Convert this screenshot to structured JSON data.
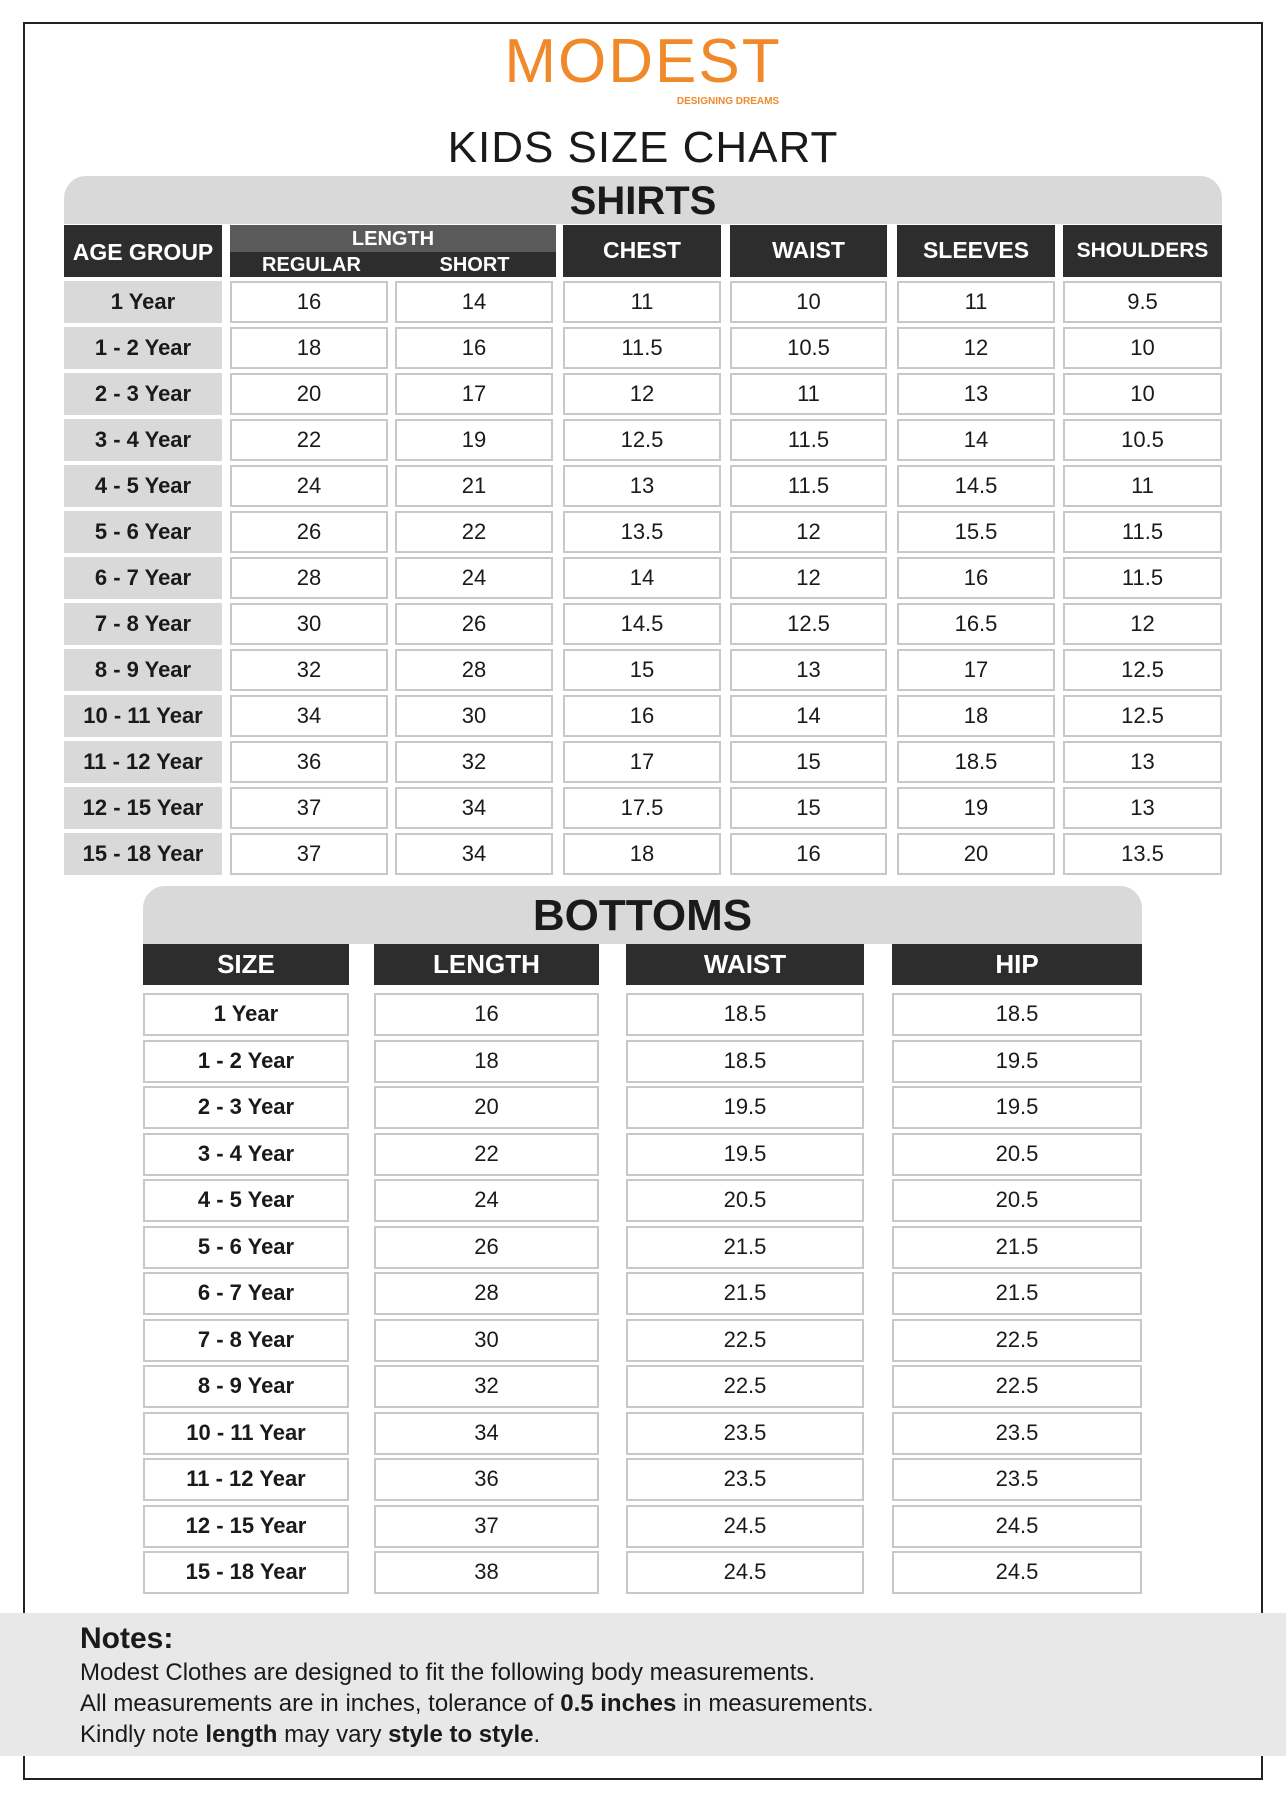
{
  "logo": {
    "word": "MODEST",
    "tagline": "DESIGNING DREAMS",
    "color": "#f0892a"
  },
  "title": "KIDS SIZE CHART",
  "shirts": {
    "title": "SHIRTS",
    "headers": {
      "age": "AGE GROUP",
      "length": "LENGTH",
      "regular": "REGULAR",
      "short": "SHORT",
      "chest": "CHEST",
      "waist": "WAIST",
      "sleeves": "SLEEVES",
      "shoulders": "SHOULDERS"
    },
    "rows": [
      [
        "1 Year",
        "16",
        "14",
        "11",
        "10",
        "11",
        "9.5"
      ],
      [
        "1 - 2 Year",
        "18",
        "16",
        "11.5",
        "10.5",
        "12",
        "10"
      ],
      [
        "2 - 3 Year",
        "20",
        "17",
        "12",
        "11",
        "13",
        "10"
      ],
      [
        "3 - 4 Year",
        "22",
        "19",
        "12.5",
        "11.5",
        "14",
        "10.5"
      ],
      [
        "4 - 5 Year",
        "24",
        "21",
        "13",
        "11.5",
        "14.5",
        "11"
      ],
      [
        "5 - 6 Year",
        "26",
        "22",
        "13.5",
        "12",
        "15.5",
        "11.5"
      ],
      [
        "6 - 7 Year",
        "28",
        "24",
        "14",
        "12",
        "16",
        "11.5"
      ],
      [
        "7 - 8 Year",
        "30",
        "26",
        "14.5",
        "12.5",
        "16.5",
        "12"
      ],
      [
        "8 - 9 Year",
        "32",
        "28",
        "15",
        "13",
        "17",
        "12.5"
      ],
      [
        "10 - 11 Year",
        "34",
        "30",
        "16",
        "14",
        "18",
        "12.5"
      ],
      [
        "11 - 12 Year",
        "36",
        "32",
        "17",
        "15",
        "18.5",
        "13"
      ],
      [
        "12 - 15 Year",
        "37",
        "34",
        "17.5",
        "15",
        "19",
        "13"
      ],
      [
        "15 - 18 Year",
        "37",
        "34",
        "18",
        "16",
        "20",
        "13.5"
      ]
    ]
  },
  "bottoms": {
    "title": "BOTTOMS",
    "headers": [
      "SIZE",
      "LENGTH",
      "WAIST",
      "HIP"
    ],
    "rows": [
      [
        "1 Year",
        "16",
        "18.5",
        "18.5"
      ],
      [
        "1 - 2 Year",
        "18",
        "18.5",
        "19.5"
      ],
      [
        "2 - 3 Year",
        "20",
        "19.5",
        "19.5"
      ],
      [
        "3 - 4 Year",
        "22",
        "19.5",
        "20.5"
      ],
      [
        "4 - 5 Year",
        "24",
        "20.5",
        "20.5"
      ],
      [
        "5 - 6 Year",
        "26",
        "21.5",
        "21.5"
      ],
      [
        "6 - 7 Year",
        "28",
        "21.5",
        "21.5"
      ],
      [
        "7 - 8 Year",
        "30",
        "22.5",
        "22.5"
      ],
      [
        "8 - 9 Year",
        "32",
        "22.5",
        "22.5"
      ],
      [
        "10 - 11 Year",
        "34",
        "23.5",
        "23.5"
      ],
      [
        "11 - 12 Year",
        "36",
        "23.5",
        "23.5"
      ],
      [
        "12 - 15 Year",
        "37",
        "24.5",
        "24.5"
      ],
      [
        "15 - 18 Year",
        "38",
        "24.5",
        "24.5"
      ]
    ]
  },
  "notes": {
    "title": "Notes:",
    "line1": "Modest Clothes are designed to fit the following body measurements.",
    "line2a": "All measurements are in inches, tolerance of ",
    "line2b": "0.5 inches",
    "line2c": " in measurements.",
    "line3a": "Kindly note ",
    "line3b": "length",
    "line3c": " may vary ",
    "line3d": "style to style",
    "line3e": "."
  }
}
